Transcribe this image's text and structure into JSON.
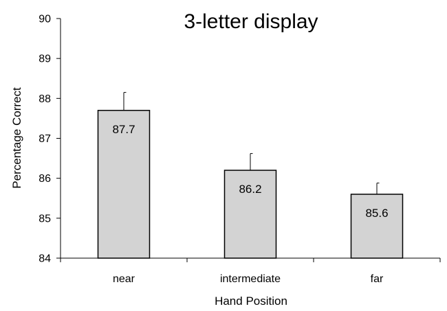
{
  "chart_data": {
    "type": "bar",
    "title": "3-letter display",
    "xlabel": "Hand Position",
    "ylabel": "Percentage Correct",
    "categories": [
      "near",
      "intermediate",
      "far"
    ],
    "values": [
      87.7,
      86.2,
      85.6
    ],
    "data_labels": [
      "87.7",
      "86.2",
      "85.6"
    ],
    "error_upper": [
      88.15,
      86.62,
      85.88
    ],
    "ylim": [
      84,
      90
    ],
    "yticks": [
      "84",
      "85",
      "86",
      "87",
      "88",
      "89",
      "90"
    ],
    "grid": false,
    "legend": "none",
    "bar_color": "#d3d3d3",
    "bar_edge_color": "#000000"
  }
}
